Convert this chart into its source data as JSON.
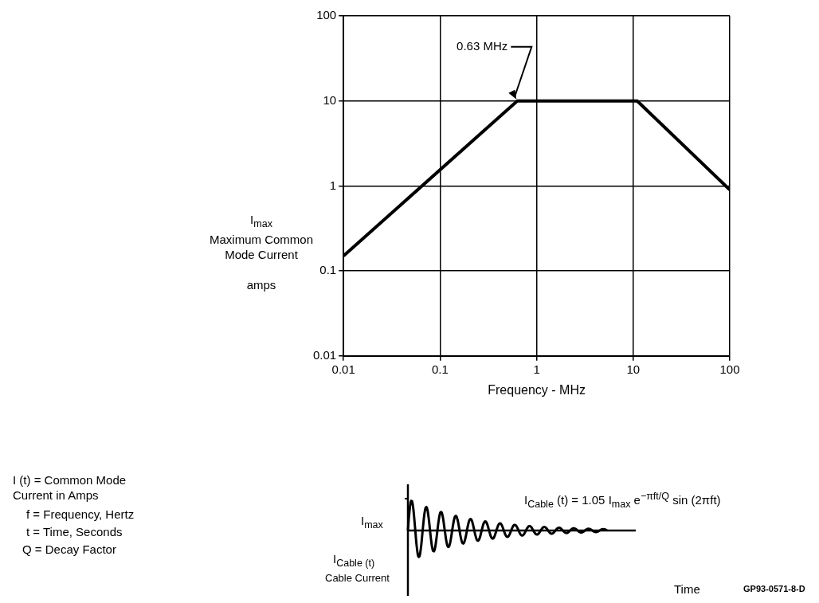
{
  "chart_data": {
    "type": "line",
    "xlabel": "Frequency - MHz",
    "ylabel": "I$_{max}$ Maximum Common Mode Current amps",
    "series": [
      {
        "color": "#000000",
        "x": [
          0.01,
          0.63,
          11,
          100
        ],
        "values": [
          0.15,
          10,
          10,
          0.9
        ]
      }
    ],
    "log": "xy",
    "xlim": [
      0.01,
      100
    ],
    "xticks": [
      0.01,
      0.1,
      1,
      10,
      100
    ],
    "ylim": [
      0.01,
      100
    ],
    "yticks": [
      0.01,
      0.1,
      1,
      10,
      100
    ],
    "grid": true,
    "legend": false,
    "marker": "none",
    "line_style": "solid",
    "annotations": [
      {
        "text": "0.63 MHz",
        "x": 0.63,
        "y": 10
      },
      "I (t) = Common Mode Current in Amps",
      "f = Frequency, Hertz",
      "t = Time, Seconds",
      "Q = Decay Factor",
      "I$_{Cable}$ (t) = 1.05 I$_{max}$ e$^{−πft/Q}$ sin (2πft)",
      "I$_{max}$",
      "I$_{Cable (t)}$",
      "Cable Current",
      "Time",
      "GP93-0571-8-D"
    ]
  }
}
